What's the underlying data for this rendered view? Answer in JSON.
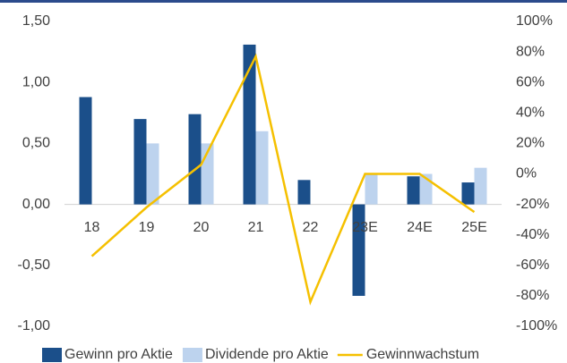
{
  "chart_data": {
    "type": "bar",
    "categories": [
      "18",
      "19",
      "20",
      "21",
      "22",
      "23E",
      "24E",
      "25E"
    ],
    "series": [
      {
        "name": "Gewinn pro Aktie",
        "color": "#1b4f8a",
        "values": [
          0.88,
          0.7,
          0.74,
          1.31,
          0.2,
          -0.75,
          0.23,
          0.18
        ]
      },
      {
        "name": "Dividende pro Aktie",
        "color": "#bdd3ee",
        "values": [
          null,
          0.5,
          0.5,
          0.6,
          null,
          0.25,
          0.25,
          0.3
        ]
      },
      {
        "name": "Gewinnwachstum",
        "type": "line",
        "axis": "y2",
        "color": "#f5c000",
        "values": [
          -54,
          -22,
          6,
          77,
          -84,
          0,
          0,
          -25
        ]
      }
    ],
    "ylim": [
      -1,
      1.5
    ],
    "yticks": [
      {
        "value": -1,
        "label": "-1,00"
      },
      {
        "value": -0.5,
        "label": "-0,50"
      },
      {
        "value": 0,
        "label": "0,00"
      },
      {
        "value": 0.5,
        "label": "0,50"
      },
      {
        "value": 1,
        "label": "1,00"
      },
      {
        "value": 1.5,
        "label": "1,50"
      }
    ],
    "y2lim": [
      -100,
      100
    ],
    "y2ticks": [
      {
        "value": -100,
        "label": "-100%"
      },
      {
        "value": -80,
        "label": "-80%"
      },
      {
        "value": -60,
        "label": "-60%"
      },
      {
        "value": -40,
        "label": "-40%"
      },
      {
        "value": -20,
        "label": "-20%"
      },
      {
        "value": 0,
        "label": "0%"
      },
      {
        "value": 20,
        "label": "20%"
      },
      {
        "value": 40,
        "label": "40%"
      },
      {
        "value": 60,
        "label": "60%"
      },
      {
        "value": 80,
        "label": "80%"
      },
      {
        "value": 100,
        "label": "100%"
      }
    ],
    "grid": false,
    "legend": "bottom"
  }
}
